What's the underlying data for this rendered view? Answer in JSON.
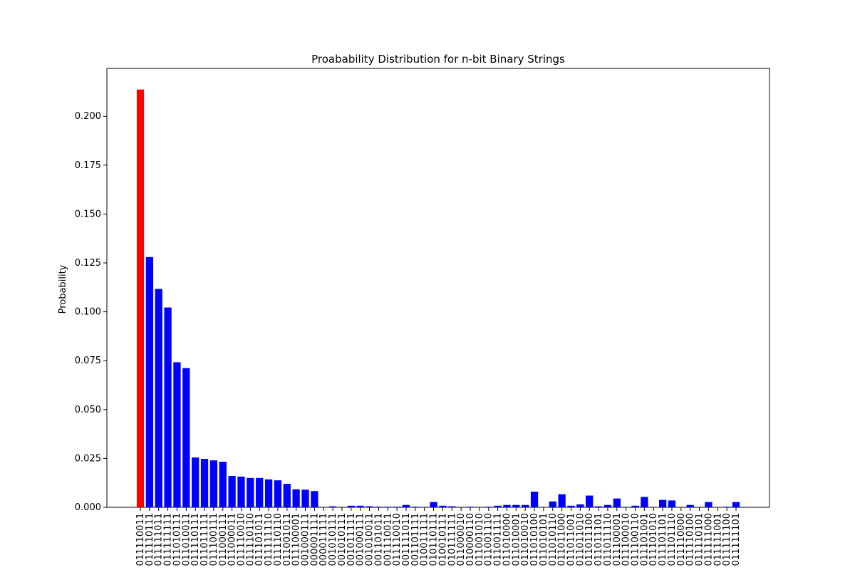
{
  "chart_data": {
    "type": "bar",
    "title": "Proabability Distribution for n-bit Binary Strings",
    "xlabel": "",
    "ylabel": "Probability",
    "ylim": [
      0,
      0.2245
    ],
    "yticks": [
      0.0,
      0.025,
      0.05,
      0.075,
      0.1,
      0.125,
      0.15,
      0.175,
      0.2
    ],
    "ytick_labels": [
      "0.000",
      "0.025",
      "0.050",
      "0.075",
      "0.100",
      "0.125",
      "0.150",
      "0.175",
      "0.200"
    ],
    "grid": false,
    "highlight_color": "#ff0000",
    "bar_color": "#0000ff",
    "categories": [
      "011110011",
      "011110111",
      "011111011",
      "011111111",
      "011010111",
      "011010011",
      "011110111",
      "011011111",
      "011100111",
      "011000111",
      "011000011",
      "011110010",
      "011110110",
      "011101011",
      "011111110",
      "011110110",
      "011001011",
      "011100001",
      "001000111",
      "000001111",
      "000011111",
      "001010111",
      "001010111",
      "001011111",
      "001000111",
      "001010011",
      "001101011",
      "001110011",
      "011110010",
      "001111011",
      "001101111",
      "010011111",
      "010110111",
      "010010111",
      "010111111",
      "011000010",
      "010000110",
      "011001010",
      "011001110",
      "011001111",
      "011010000",
      "011010001",
      "011010010",
      "011010100",
      "011010101",
      "011010110",
      "011011000",
      "011011001",
      "011011010",
      "011011100",
      "011011101",
      "011011110",
      "011100001",
      "011100010",
      "011100110",
      "011101001",
      "011101010",
      "011101101",
      "011101110",
      "011110000",
      "011110100",
      "011110101",
      "011111000",
      "011111001",
      "011111100",
      "011111101"
    ],
    "values": [
      0.2137,
      0.128,
      0.1117,
      0.1022,
      0.0742,
      0.0712,
      0.0255,
      0.0248,
      0.024,
      0.0233,
      0.016,
      0.0157,
      0.015,
      0.015,
      0.0143,
      0.0138,
      0.012,
      0.0092,
      0.009,
      0.0083,
      0.0,
      0.0005,
      0.0,
      0.0008,
      0.0008,
      0.0005,
      0.0003,
      0.0003,
      0.0003,
      0.0012,
      0.0003,
      0.0,
      0.0027,
      0.0008,
      0.0005,
      0.0,
      0.0003,
      0.0,
      0.0003,
      0.0008,
      0.0012,
      0.0012,
      0.0012,
      0.008,
      0.0,
      0.003,
      0.0067,
      0.0008,
      0.0015,
      0.006,
      0.0005,
      0.0012,
      0.0045,
      0.0,
      0.0008,
      0.0053,
      0.0,
      0.0038,
      0.0035,
      0.0,
      0.0012,
      0.0,
      0.0027,
      0.0,
      0.0003,
      0.0027
    ],
    "highlight_index": 0
  }
}
